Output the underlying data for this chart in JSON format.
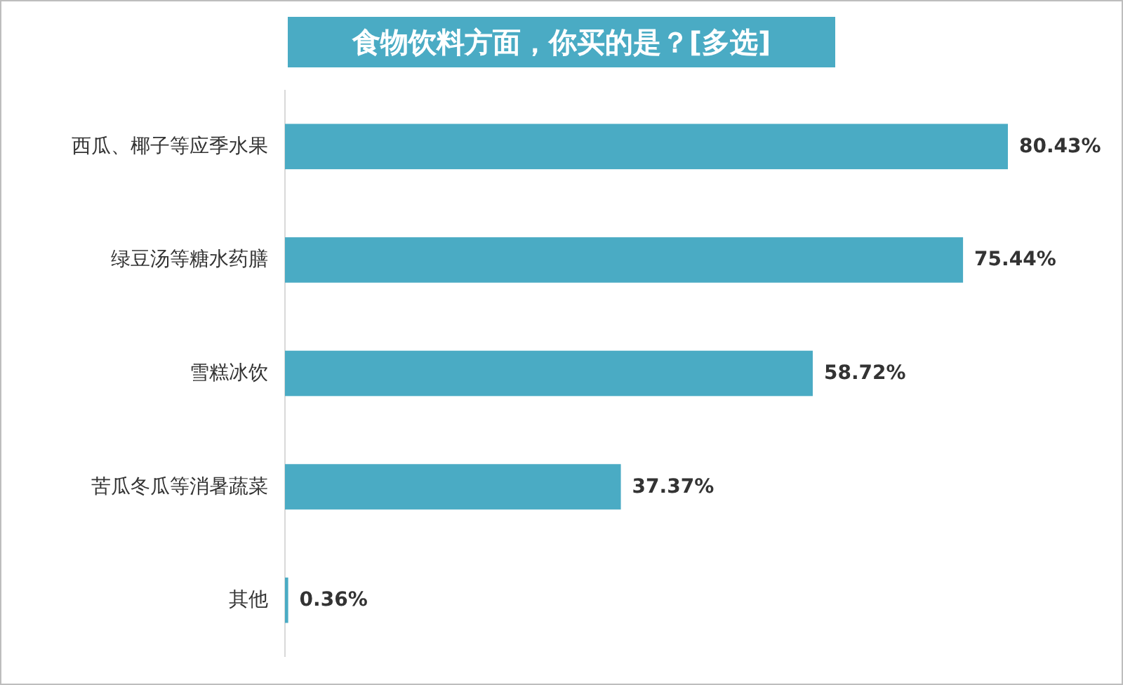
{
  "chart_data": {
    "type": "bar",
    "orientation": "horizontal",
    "title": "食物饮料方面，你买的是？[多选]",
    "categories": [
      "西瓜、椰子等应季水果",
      "绿豆汤等糖水药膳",
      "雪糕冰饮",
      "苦瓜冬瓜等消暑蔬菜",
      "其他"
    ],
    "values": [
      80.43,
      75.44,
      58.72,
      37.37,
      0.36
    ],
    "value_labels": [
      "80.43%",
      "75.44%",
      "58.72%",
      "37.37%",
      "0.36%"
    ],
    "color": "#4aabc4"
  }
}
